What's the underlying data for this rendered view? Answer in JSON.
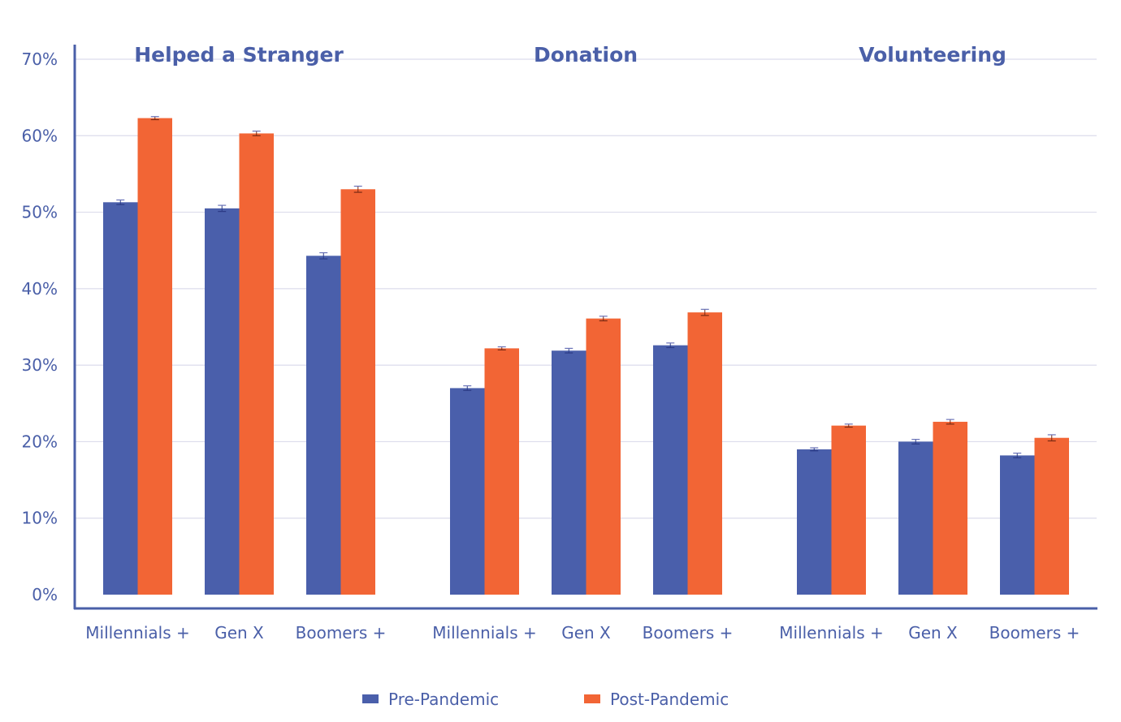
{
  "chart_data": {
    "type": "bar",
    "title": "",
    "xlabel": "",
    "ylabel": "",
    "ylim": [
      0,
      70
    ],
    "yticks": [
      0,
      10,
      20,
      30,
      40,
      50,
      60,
      70
    ],
    "ytick_labels": [
      "0%",
      "10%",
      "20%",
      "30%",
      "40%",
      "50%",
      "60%",
      "70%"
    ],
    "grid": true,
    "legend_position": "bottom",
    "colors": {
      "Pre-Pandemic": "#4a5fab",
      "Post-Pandemic": "#f26535",
      "axis": "#4a5fa8",
      "grid": "#dcdcec"
    },
    "groups": [
      {
        "title": "Helped a Stranger",
        "categories": [
          "Millennials +",
          "Gen X",
          "Boomers +"
        ],
        "series": [
          {
            "name": "Pre-Pandemic",
            "values": [
              51.3,
              50.5,
              44.3
            ],
            "errors": [
              0.3,
              0.4,
              0.4
            ]
          },
          {
            "name": "Post-Pandemic",
            "values": [
              62.3,
              60.3,
              53.0
            ],
            "errors": [
              0.2,
              0.3,
              0.4
            ]
          }
        ]
      },
      {
        "title": "Donation",
        "categories": [
          "Millennials +",
          "Gen X",
          "Boomers +"
        ],
        "series": [
          {
            "name": "Pre-Pandemic",
            "values": [
              27.0,
              31.9,
              32.6
            ],
            "errors": [
              0.3,
              0.3,
              0.3
            ]
          },
          {
            "name": "Post-Pandemic",
            "values": [
              32.2,
              36.1,
              36.9
            ],
            "errors": [
              0.2,
              0.3,
              0.4
            ]
          }
        ]
      },
      {
        "title": "Volunteering",
        "categories": [
          "Millennials +",
          "Gen X",
          "Boomers +"
        ],
        "series": [
          {
            "name": "Pre-Pandemic",
            "values": [
              19.0,
              20.0,
              18.2
            ],
            "errors": [
              0.2,
              0.3,
              0.3
            ]
          },
          {
            "name": "Post-Pandemic",
            "values": [
              22.1,
              22.6,
              20.5
            ],
            "errors": [
              0.2,
              0.3,
              0.4
            ]
          }
        ]
      }
    ],
    "legend": [
      "Pre-Pandemic",
      "Post-Pandemic"
    ]
  }
}
